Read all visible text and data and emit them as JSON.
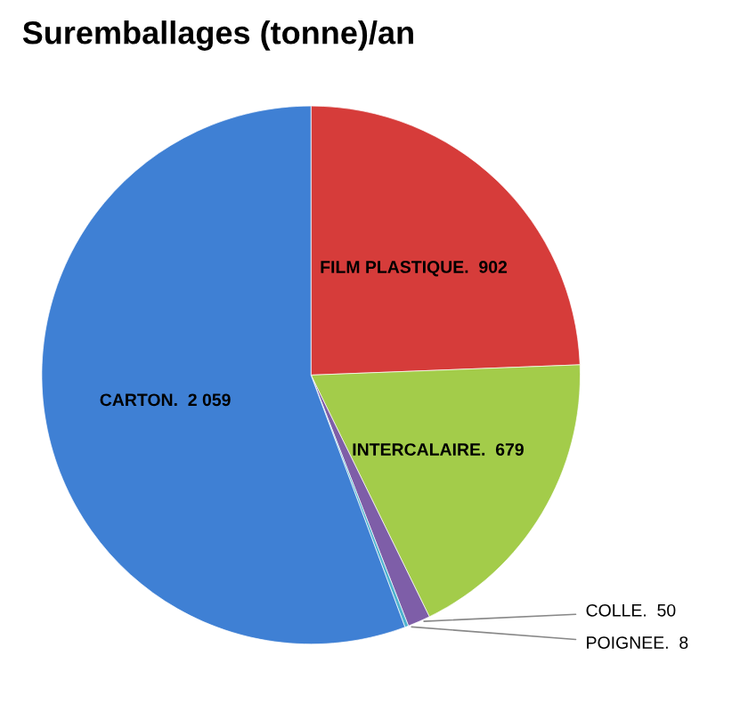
{
  "chart_data": {
    "type": "pie",
    "title": "Suremballages (tonne)/an",
    "categories": [
      "FILM PLASTIQUE.",
      "INTERCALAIRE.",
      "COLLE.",
      "POIGNEE.",
      "CARTON."
    ],
    "values": [
      902,
      679,
      50,
      8,
      2059
    ],
    "value_labels": [
      "902",
      "679",
      "50",
      "8",
      "2 059"
    ],
    "colors": [
      "#d63c3a",
      "#a3cc4a",
      "#7e5ea8",
      "#4fb3cf",
      "#3f80d4"
    ],
    "legend": false
  }
}
